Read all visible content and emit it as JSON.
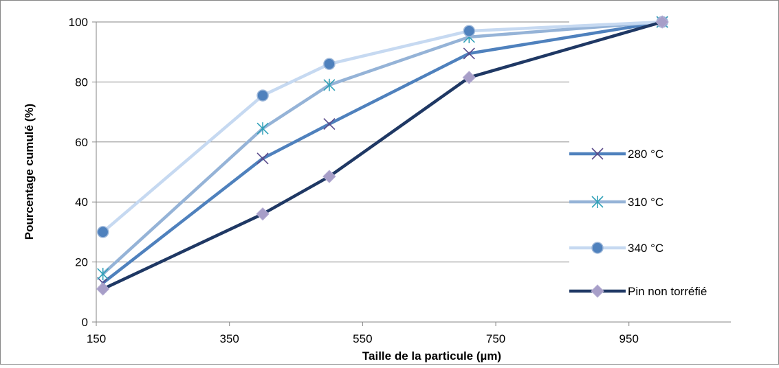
{
  "chart_data": {
    "type": "line",
    "title": "",
    "xlabel": "Taille de la particule (µm)",
    "ylabel": "Pourcentage cumulé (%)",
    "xlim": [
      150,
      1100
    ],
    "ylim": [
      0,
      100
    ],
    "x_ticks": [
      "150",
      "350",
      "550",
      "750",
      "950"
    ],
    "y_ticks": [
      "0",
      "20",
      "40",
      "60",
      "80",
      "100"
    ],
    "grid": "horizontal",
    "legend_position": "right",
    "series": [
      {
        "name": "280 °C",
        "color": "#4f81bd",
        "marker": "x",
        "points": [
          [
            160,
            13
          ],
          [
            400,
            54.5
          ],
          [
            500,
            66
          ],
          [
            710,
            89.5
          ],
          [
            1000,
            100
          ]
        ]
      },
      {
        "name": "310 °C",
        "color": "#95b3d7",
        "marker": "star",
        "marker_color": "#4bacc6",
        "points": [
          [
            160,
            16
          ],
          [
            400,
            64.5
          ],
          [
            500,
            79
          ],
          [
            710,
            95
          ],
          [
            1000,
            100
          ]
        ]
      },
      {
        "name": "340 °C",
        "color": "#c6d9f1",
        "marker": "circle",
        "marker_color": "#4f81bd",
        "points": [
          [
            160,
            30
          ],
          [
            400,
            75.5
          ],
          [
            500,
            86
          ],
          [
            710,
            97
          ],
          [
            1000,
            100
          ]
        ]
      },
      {
        "name": "Pin non torréfié",
        "color": "#1f3864",
        "marker": "diamond",
        "marker_color": "#a79ec8",
        "points": [
          [
            160,
            11
          ],
          [
            400,
            36
          ],
          [
            500,
            48.5
          ],
          [
            710,
            81.5
          ],
          [
            1000,
            100
          ]
        ]
      }
    ]
  }
}
